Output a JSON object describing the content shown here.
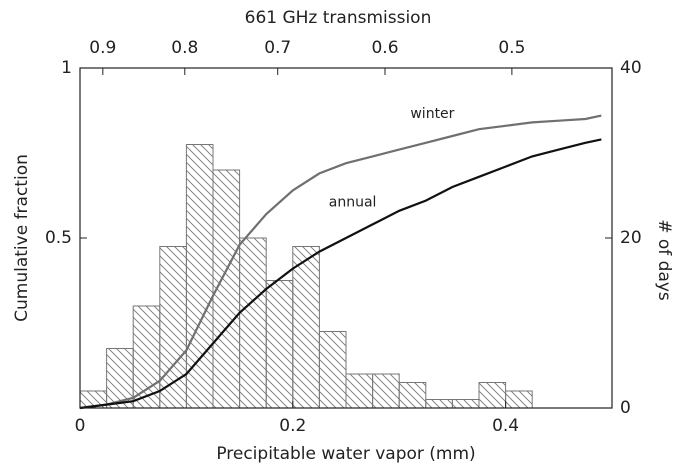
{
  "chart_data": {
    "type": "line",
    "x_label": "Precipitable water vapor (mm)",
    "y_label": "Cumulative fraction",
    "y2_label": "# of days",
    "x2_label": "661 GHz transmission",
    "xlim": [
      0,
      0.5
    ],
    "xticks": [
      0,
      0.2,
      0.4
    ],
    "ylim": [
      0,
      1
    ],
    "yticks": [
      0.5,
      1
    ],
    "y2lim": [
      0,
      40
    ],
    "y2ticks": [
      0,
      20,
      40
    ],
    "x2lim": [
      0.93,
      0.433
    ],
    "x2scale": "log",
    "x2ticks": [
      0.9,
      0.8,
      0.7,
      0.6,
      0.5
    ],
    "x": [
      0,
      0.025,
      0.05,
      0.075,
      0.1,
      0.125,
      0.15,
      0.175,
      0.2,
      0.225,
      0.25,
      0.275,
      0.3,
      0.325,
      0.35,
      0.375,
      0.4,
      0.425,
      0.45,
      0.475,
      0.49
    ],
    "series": [
      {
        "name": "winter",
        "color": "#707070",
        "values": [
          0,
          0.01,
          0.03,
          0.08,
          0.17,
          0.33,
          0.48,
          0.57,
          0.64,
          0.69,
          0.72,
          0.74,
          0.76,
          0.78,
          0.8,
          0.82,
          0.83,
          0.84,
          0.845,
          0.85,
          0.86
        ]
      },
      {
        "name": "annual",
        "color": "#111111",
        "values": [
          0,
          0.01,
          0.02,
          0.05,
          0.1,
          0.19,
          0.28,
          0.35,
          0.41,
          0.46,
          0.5,
          0.54,
          0.58,
          0.61,
          0.65,
          0.68,
          0.71,
          0.74,
          0.76,
          0.78,
          0.79
        ]
      }
    ],
    "histogram": {
      "type": "histogram",
      "axis": "y2",
      "color": "#777777",
      "bins": [
        0,
        0.025,
        0.05,
        0.075,
        0.1,
        0.125,
        0.15,
        0.175,
        0.2,
        0.225,
        0.25,
        0.275,
        0.3,
        0.325,
        0.35,
        0.375,
        0.4,
        0.425
      ],
      "counts": [
        2,
        7,
        12,
        19,
        31,
        28,
        20,
        15,
        19,
        9,
        4,
        4,
        3,
        1,
        1,
        3,
        2
      ]
    }
  }
}
